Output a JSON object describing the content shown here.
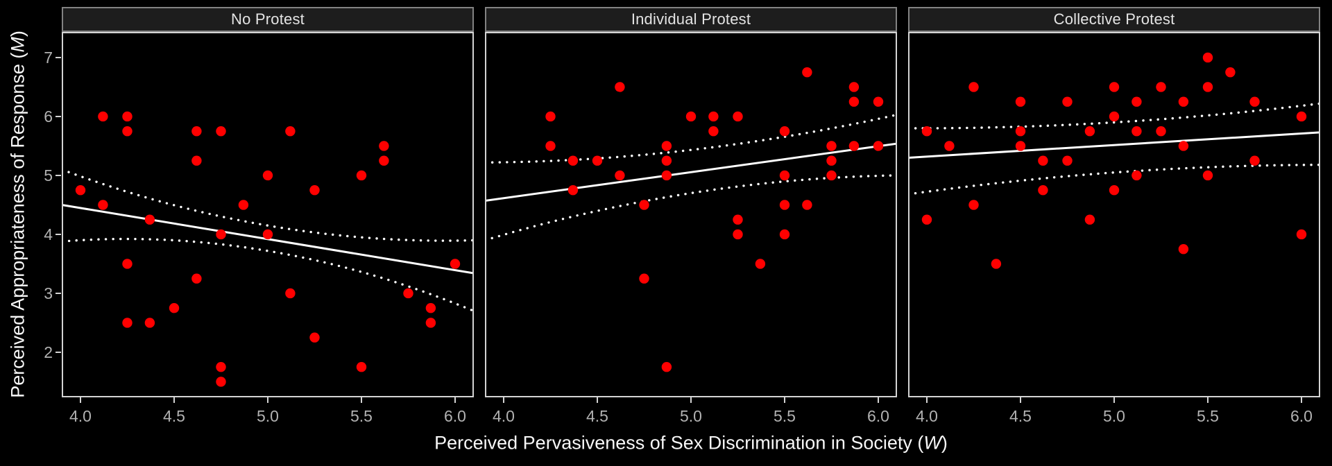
{
  "figure": {
    "background": "#000000"
  },
  "axes": {
    "x_title": {
      "pre": "Perceived Pervasiveness of Sex Discrimination in Society (",
      "var": "W",
      "post": ")"
    },
    "y_title": {
      "pre": "Perceived Appropriateness of Response (",
      "var": "M",
      "post": ")"
    }
  },
  "colors": {
    "point": "#ff0000",
    "line": "#ffffff",
    "panel_border": "#d4d4d4",
    "strip_bg": "#1d1d1d",
    "strip_border": "#828282",
    "strip_text": "#e4e4e4",
    "tick_label": "#b2b2b2",
    "tick_mark": "#d4d4d4",
    "axis_title": "#f7f7f7",
    "background": "#000000"
  },
  "chart_data": {
    "type": "scatter",
    "title": "",
    "xlabel": "Perceived Pervasiveness of Sex Discrimination in Society (W)",
    "ylabel": "Perceived Appropriateness of Response (M)",
    "grid": "off",
    "legend": "none",
    "x_domain": [
      3.9,
      6.1
    ],
    "y_domain": [
      1.235,
      7.435
    ],
    "x_ticks": [
      "4.0",
      "4.5",
      "5.0",
      "5.5",
      "6.0"
    ],
    "x_tick_values": [
      4.0,
      4.5,
      5.0,
      5.5,
      6.0
    ],
    "y_ticks": [
      "7",
      "6",
      "5",
      "4",
      "3",
      "2"
    ],
    "y_tick_values": [
      7,
      6,
      5,
      4,
      3,
      2
    ],
    "facets": [
      {
        "label": "No Protest",
        "points": [
          [
            4.12,
            6.0
          ],
          [
            4.25,
            6.0
          ],
          [
            4.25,
            5.75
          ],
          [
            4.62,
            5.75
          ],
          [
            4.75,
            5.75
          ],
          [
            5.12,
            5.75
          ],
          [
            5.62,
            5.5
          ],
          [
            4.62,
            5.25
          ],
          [
            5.62,
            5.25
          ],
          [
            5.0,
            5.0
          ],
          [
            5.5,
            5.0
          ],
          [
            4.0,
            4.75
          ],
          [
            5.25,
            4.75
          ],
          [
            4.12,
            4.5
          ],
          [
            4.87,
            4.5
          ],
          [
            4.37,
            4.25
          ],
          [
            4.75,
            4.0
          ],
          [
            5.0,
            4.0
          ],
          [
            4.25,
            3.5
          ],
          [
            6.0,
            3.5
          ],
          [
            4.62,
            3.25
          ],
          [
            5.12,
            3.0
          ],
          [
            5.75,
            3.0
          ],
          [
            4.5,
            2.75
          ],
          [
            5.87,
            2.75
          ],
          [
            4.25,
            2.5
          ],
          [
            4.37,
            2.5
          ],
          [
            5.87,
            2.5
          ],
          [
            5.25,
            2.25
          ],
          [
            4.75,
            1.75
          ],
          [
            5.5,
            1.75
          ],
          [
            4.75,
            1.5
          ]
        ],
        "fit_line": {
          "start": [
            3.9,
            4.5
          ],
          "end": [
            6.1,
            3.34
          ]
        },
        "ci_upper": {
          "start": [
            3.9,
            5.1
          ],
          "ctrl": [
            5.0,
            3.8
          ],
          "end": [
            6.1,
            3.9
          ]
        },
        "ci_lower": {
          "start": [
            3.9,
            3.88
          ],
          "ctrl": [
            5.0,
            4.15
          ],
          "end": [
            6.1,
            2.7
          ]
        }
      },
      {
        "label": "Individual Protest",
        "points": [
          [
            5.62,
            6.75
          ],
          [
            4.62,
            6.5
          ],
          [
            5.87,
            6.5
          ],
          [
            5.87,
            6.25
          ],
          [
            6.0,
            6.25
          ],
          [
            4.25,
            6.0
          ],
          [
            5.0,
            6.0
          ],
          [
            5.12,
            6.0
          ],
          [
            5.25,
            6.0
          ],
          [
            5.12,
            5.75
          ],
          [
            5.5,
            5.75
          ],
          [
            4.25,
            5.5
          ],
          [
            4.87,
            5.5
          ],
          [
            5.75,
            5.5
          ],
          [
            5.87,
            5.5
          ],
          [
            6.0,
            5.5
          ],
          [
            4.37,
            5.25
          ],
          [
            4.5,
            5.25
          ],
          [
            4.87,
            5.25
          ],
          [
            5.75,
            5.25
          ],
          [
            4.62,
            5.0
          ],
          [
            4.87,
            5.0
          ],
          [
            5.5,
            5.0
          ],
          [
            5.75,
            5.0
          ],
          [
            4.37,
            4.75
          ],
          [
            4.75,
            4.5
          ],
          [
            5.5,
            4.5
          ],
          [
            5.62,
            4.5
          ],
          [
            5.25,
            4.25
          ],
          [
            5.25,
            4.0
          ],
          [
            5.5,
            4.0
          ],
          [
            5.37,
            3.5
          ],
          [
            4.75,
            3.25
          ],
          [
            4.87,
            1.75
          ]
        ],
        "fit_line": {
          "start": [
            3.9,
            4.57
          ],
          "end": [
            6.1,
            5.54
          ]
        },
        "ci_upper": {
          "start": [
            3.9,
            5.22
          ],
          "ctrl": [
            5.0,
            5.24
          ],
          "end": [
            6.1,
            6.03
          ]
        },
        "ci_lower": {
          "start": [
            3.9,
            3.9
          ],
          "ctrl": [
            5.0,
            4.95
          ],
          "end": [
            6.1,
            5.0
          ]
        }
      },
      {
        "label": "Collective Protest",
        "points": [
          [
            5.5,
            7.0
          ],
          [
            5.62,
            6.75
          ],
          [
            4.25,
            6.5
          ],
          [
            5.0,
            6.5
          ],
          [
            5.25,
            6.5
          ],
          [
            5.5,
            6.5
          ],
          [
            4.5,
            6.25
          ],
          [
            4.75,
            6.25
          ],
          [
            5.12,
            6.25
          ],
          [
            5.37,
            6.25
          ],
          [
            5.75,
            6.25
          ],
          [
            5.0,
            6.0
          ],
          [
            6.0,
            6.0
          ],
          [
            4.0,
            5.75
          ],
          [
            4.5,
            5.75
          ],
          [
            4.87,
            5.75
          ],
          [
            5.12,
            5.75
          ],
          [
            5.25,
            5.75
          ],
          [
            4.12,
            5.5
          ],
          [
            4.5,
            5.5
          ],
          [
            5.37,
            5.5
          ],
          [
            4.62,
            5.25
          ],
          [
            4.75,
            5.25
          ],
          [
            5.75,
            5.25
          ],
          [
            5.12,
            5.0
          ],
          [
            5.5,
            5.0
          ],
          [
            4.62,
            4.75
          ],
          [
            5.0,
            4.75
          ],
          [
            4.25,
            4.5
          ],
          [
            4.0,
            4.25
          ],
          [
            4.87,
            4.25
          ],
          [
            5.37,
            3.75
          ],
          [
            4.37,
            3.5
          ],
          [
            6.0,
            4.0
          ]
        ],
        "fit_line": {
          "start": [
            3.9,
            5.3
          ],
          "end": [
            6.1,
            5.73
          ]
        },
        "ci_upper": {
          "start": [
            3.9,
            5.8
          ],
          "ctrl": [
            5.0,
            5.79
          ],
          "end": [
            6.1,
            6.22
          ]
        },
        "ci_lower": {
          "start": [
            3.9,
            4.68
          ],
          "ctrl": [
            5.0,
            5.17
          ],
          "end": [
            6.1,
            5.18
          ]
        }
      }
    ]
  },
  "layout_note_values": {
    "facet_count": "3"
  }
}
